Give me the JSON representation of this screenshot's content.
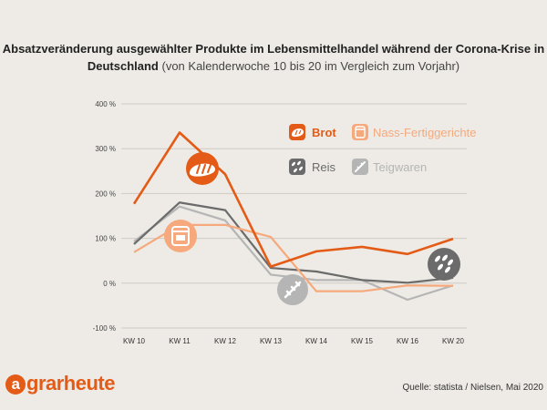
{
  "title": {
    "bold": "Absatzveränderung ausgewählter Produkte im Lebensmittelhandel während der Corona-Krise in Deutschland",
    "light": "(von Kalenderwoche 10 bis 20 im Vergleich zum Vorjahr)"
  },
  "logo": "agrarheute",
  "source": "Quelle: statista / Nielsen, Mai 2020",
  "icons": {
    "Brot": "bread-icon",
    "Nass-Fertiggerichte": "can-icon",
    "Reis": "rice-icon",
    "Teigwaren": "pasta-icon"
  },
  "chart_data": {
    "type": "line",
    "categories": [
      "KW 10",
      "KW 11",
      "KW 12",
      "KW 13",
      "KW 14",
      "KW 15",
      "KW 16",
      "KW 20"
    ],
    "ylim": [
      -100,
      400
    ],
    "yticks": [
      400,
      300,
      200,
      100,
      0,
      -100
    ],
    "ytick_labels": [
      "400 %",
      "300 %",
      "200 %",
      "100 %",
      "0 %",
      "-100 %"
    ],
    "grid": true,
    "legend": "top-right",
    "series": [
      {
        "name": "Brot",
        "color": "#e35b16",
        "values": [
          177,
          336,
          243,
          37,
          71,
          81,
          65,
          99
        ]
      },
      {
        "name": "Nass-Fertiggerichte",
        "color": "#f5a97c",
        "values": [
          69,
          130,
          130,
          103,
          -18,
          -18,
          -5,
          -6
        ]
      },
      {
        "name": "Reis",
        "color": "#6b6b6b",
        "values": [
          87,
          180,
          163,
          34,
          26,
          7,
          1,
          12
        ]
      },
      {
        "name": "Teigwaren",
        "color": "#b5b5b5",
        "values": [
          93,
          171,
          140,
          19,
          7,
          7,
          -37,
          -5
        ]
      }
    ]
  }
}
